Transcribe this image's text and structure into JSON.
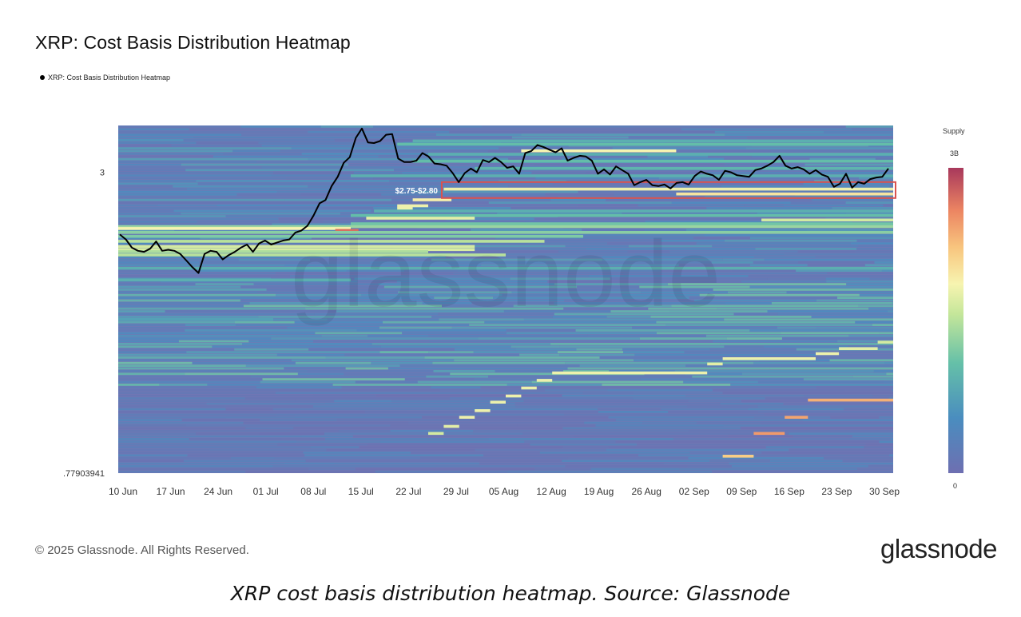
{
  "title": "XRP: Cost Basis Distribution Heatmap",
  "legend": {
    "series_label": "XRP: Cost Basis Distribution Heatmap"
  },
  "colorbar": {
    "title": "Supply",
    "max_label": "3B",
    "min_label": "0"
  },
  "footer": {
    "copyright": "© 2025 Glassnode. All Rights Reserved.",
    "logo": "glassnode"
  },
  "caption": "XRP cost basis distribution heatmap. Source: Glassnode",
  "watermark": "glassnode",
  "colors": {
    "line": "#000000",
    "highlight_box": "#d9534f",
    "background_low": "#7477b3"
  },
  "chart_data": {
    "type": "heatmap",
    "title": "XRP: Cost Basis Distribution Heatmap",
    "xlabel": "",
    "ylabel": "",
    "x_tick_labels": [
      "10 Jun",
      "17 Jun",
      "24 Jun",
      "01 Jul",
      "08 Jul",
      "15 Jul",
      "22 Jul",
      "29 Jul",
      "05 Aug",
      "12 Aug",
      "19 Aug",
      "26 Aug",
      "02 Sep",
      "09 Sep",
      "16 Sep",
      "23 Sep",
      "30 Sep"
    ],
    "y_scale": "log",
    "y_tick_labels": [
      {
        "label": "3",
        "value": 3.0
      },
      {
        "label": ".77903941",
        "value": 0.77903941
      }
    ],
    "ylim": [
      0.77903941,
      3.7
    ],
    "annotation": {
      "label": "$2.75-$2.80",
      "low": 2.75,
      "high": 2.8
    },
    "colorbar": {
      "label": "Supply",
      "min": 0,
      "max": "3B"
    },
    "price_series": {
      "name": "XRP: Cost Basis Distribution Heatmap",
      "start_date": "2025-06-10",
      "values": [
        2.27,
        2.22,
        2.14,
        2.11,
        2.1,
        2.13,
        2.2,
        2.11,
        2.12,
        2.11,
        2.08,
        2.02,
        1.96,
        1.91,
        2.08,
        2.11,
        2.1,
        2.03,
        2.07,
        2.1,
        2.14,
        2.17,
        2.1,
        2.18,
        2.21,
        2.17,
        2.19,
        2.21,
        2.22,
        2.29,
        2.31,
        2.36,
        2.47,
        2.61,
        2.65,
        2.82,
        2.94,
        3.13,
        3.21,
        3.5,
        3.65,
        3.43,
        3.42,
        3.45,
        3.55,
        3.56,
        3.19,
        3.14,
        3.14,
        3.16,
        3.27,
        3.22,
        3.12,
        3.11,
        3.09,
        2.99,
        2.87,
        2.99,
        3.05,
        3.0,
        3.17,
        3.14,
        3.2,
        3.14,
        3.06,
        3.08,
        2.98,
        3.27,
        3.3,
        3.39,
        3.36,
        3.32,
        3.28,
        3.34,
        3.16,
        3.2,
        3.23,
        3.22,
        3.16,
        2.98,
        3.04,
        2.97,
        3.08,
        3.03,
        2.98,
        2.83,
        2.87,
        2.9,
        2.83,
        2.82,
        2.84,
        2.79,
        2.86,
        2.87,
        2.84,
        2.95,
        3.01,
        2.98,
        2.96,
        2.9,
        3.02,
        3.0,
        2.96,
        2.95,
        2.94,
        3.03,
        3.05,
        3.09,
        3.14,
        3.23,
        3.09,
        3.05,
        3.07,
        3.04,
        2.98,
        3.03,
        2.97,
        2.94,
        2.81,
        2.85,
        2.98,
        2.8,
        2.87,
        2.85,
        2.91,
        2.93,
        2.94,
        3.05
      ]
    },
    "bands": [
      {
        "price": 3.45,
        "start": 0.38,
        "end": 1.0,
        "intensity": 0.3
      },
      {
        "price": 3.4,
        "start": 0.36,
        "end": 1.0,
        "intensity": 0.35
      },
      {
        "price": 3.3,
        "start": 0.52,
        "end": 0.72,
        "intensity": 0.62
      },
      {
        "price": 3.25,
        "start": 0.4,
        "end": 1.0,
        "intensity": 0.3
      },
      {
        "price": 3.15,
        "start": 0.38,
        "end": 1.0,
        "intensity": 0.35
      },
      {
        "price": 3.05,
        "start": 0.46,
        "end": 1.0,
        "intensity": 0.32
      },
      {
        "price": 2.95,
        "start": 0.3,
        "end": 1.0,
        "intensity": 0.3
      },
      {
        "price": 2.78,
        "start": 0.42,
        "end": 1.0,
        "intensity": 0.6
      },
      {
        "price": 2.72,
        "start": 0.72,
        "end": 1.0,
        "intensity": 0.66
      },
      {
        "price": 2.65,
        "start": 0.38,
        "end": 0.43,
        "intensity": 0.63
      },
      {
        "price": 2.58,
        "start": 0.36,
        "end": 0.4,
        "intensity": 0.6
      },
      {
        "price": 2.55,
        "start": 0.36,
        "end": 0.38,
        "intensity": 0.6
      },
      {
        "price": 2.52,
        "start": 0.33,
        "end": 1.0,
        "intensity": 0.3
      },
      {
        "price": 2.47,
        "start": 0.3,
        "end": 1.0,
        "intensity": 0.35
      },
      {
        "price": 2.44,
        "start": 0.32,
        "end": 0.46,
        "intensity": 0.58
      },
      {
        "price": 2.42,
        "start": 0.83,
        "end": 1.0,
        "intensity": 0.55
      },
      {
        "price": 2.38,
        "start": 0.3,
        "end": 1.0,
        "intensity": 0.38
      },
      {
        "price": 2.35,
        "start": 0.0,
        "end": 1.0,
        "intensity": 0.45
      },
      {
        "price": 2.33,
        "start": 0.0,
        "end": 0.3,
        "intensity": 0.62
      },
      {
        "price": 2.31,
        "start": 0.28,
        "end": 0.31,
        "intensity": 0.9
      },
      {
        "price": 2.29,
        "start": 0.0,
        "end": 1.0,
        "intensity": 0.42
      },
      {
        "price": 2.25,
        "start": 0.0,
        "end": 0.6,
        "intensity": 0.4
      },
      {
        "price": 2.2,
        "start": 0.0,
        "end": 0.55,
        "intensity": 0.5
      },
      {
        "price": 2.15,
        "start": 0.0,
        "end": 0.46,
        "intensity": 0.55
      },
      {
        "price": 2.12,
        "start": 0.0,
        "end": 0.46,
        "intensity": 0.56
      },
      {
        "price": 2.1,
        "start": 0.0,
        "end": 0.4,
        "intensity": 0.48
      },
      {
        "price": 2.07,
        "start": 0.0,
        "end": 0.5,
        "intensity": 0.5
      },
      {
        "price": 1.95,
        "start": 0.0,
        "end": 1.0,
        "intensity": 0.3
      },
      {
        "price": 1.85,
        "start": 0.0,
        "end": 0.3,
        "intensity": 0.3
      },
      {
        "price": 1.55,
        "start": 0.0,
        "end": 0.2,
        "intensity": 0.25
      }
    ],
    "rising_bands": [
      {
        "price": 0.93,
        "start": 0.4,
        "end": 0.42,
        "intensity": 0.55
      },
      {
        "price": 0.96,
        "start": 0.42,
        "end": 0.44,
        "intensity": 0.58
      },
      {
        "price": 1.0,
        "start": 0.44,
        "end": 0.46,
        "intensity": 0.6
      },
      {
        "price": 1.03,
        "start": 0.46,
        "end": 0.48,
        "intensity": 0.6
      },
      {
        "price": 1.07,
        "start": 0.48,
        "end": 0.5,
        "intensity": 0.6
      },
      {
        "price": 1.1,
        "start": 0.5,
        "end": 0.52,
        "intensity": 0.6
      },
      {
        "price": 1.14,
        "start": 0.52,
        "end": 0.54,
        "intensity": 0.6
      },
      {
        "price": 1.18,
        "start": 0.54,
        "end": 0.56,
        "intensity": 0.6
      },
      {
        "price": 1.22,
        "start": 0.56,
        "end": 0.76,
        "intensity": 0.6
      },
      {
        "price": 1.27,
        "start": 0.76,
        "end": 0.78,
        "intensity": 0.58
      },
      {
        "price": 1.3,
        "start": 0.78,
        "end": 0.9,
        "intensity": 0.6
      },
      {
        "price": 1.33,
        "start": 0.9,
        "end": 0.93,
        "intensity": 0.6
      },
      {
        "price": 1.36,
        "start": 0.93,
        "end": 0.98,
        "intensity": 0.58
      },
      {
        "price": 1.4,
        "start": 0.98,
        "end": 1.0,
        "intensity": 0.55
      },
      {
        "price": 1.08,
        "start": 0.89,
        "end": 1.0,
        "intensity": 0.78
      },
      {
        "price": 1.0,
        "start": 0.86,
        "end": 0.89,
        "intensity": 0.8
      },
      {
        "price": 0.93,
        "start": 0.82,
        "end": 0.86,
        "intensity": 0.82
      },
      {
        "price": 0.84,
        "start": 0.78,
        "end": 0.82,
        "intensity": 0.72
      }
    ]
  }
}
